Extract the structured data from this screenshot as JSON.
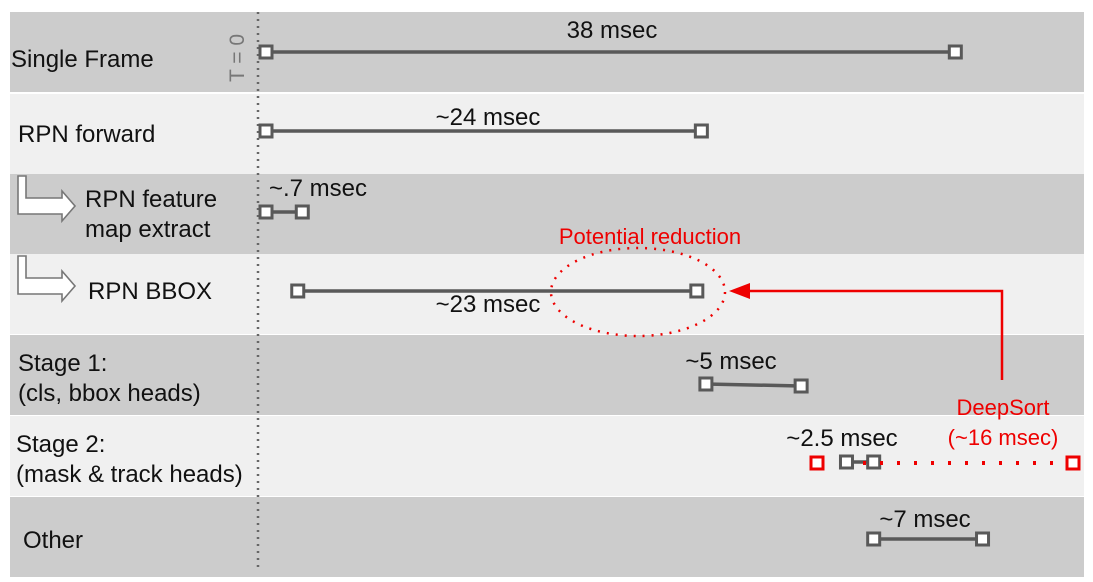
{
  "t0_label": "T = 0",
  "rows": [
    {
      "id": "single-frame",
      "label_lines": [
        "Single Frame"
      ],
      "shade": "dark",
      "arrow": false,
      "timing": "38 msec",
      "start": 0,
      "end": 38
    },
    {
      "id": "rpn-forward",
      "label_lines": [
        "RPN forward"
      ],
      "shade": "light",
      "arrow": false,
      "timing": "~24 msec",
      "start": 0,
      "end": 24
    },
    {
      "id": "rpn-feature-map-extract",
      "label_lines": [
        "RPN feature",
        "map extract"
      ],
      "shade": "dark",
      "arrow": true,
      "timing": "~.7 msec",
      "start": 0,
      "end": 2
    },
    {
      "id": "rpn-bbox",
      "label_lines": [
        "RPN BBOX"
      ],
      "shade": "light",
      "arrow": true,
      "timing": "~23 msec",
      "start": 1.75,
      "end": 23.75
    },
    {
      "id": "stage-1",
      "label_lines": [
        "Stage 1:",
        "(cls, bbox heads)"
      ],
      "shade": "dark",
      "arrow": false,
      "timing": "~5 msec",
      "start": 24.25,
      "end": 29.5
    },
    {
      "id": "stage-2",
      "label_lines": [
        "Stage 2:",
        "(mask & track heads)"
      ],
      "shade": "light",
      "arrow": false,
      "timing": "~2.5 msec",
      "start": 32,
      "end": 33.5
    },
    {
      "id": "other",
      "label_lines": [
        "Other"
      ],
      "shade": "dark",
      "arrow": false,
      "timing": "~7 msec",
      "start": 33.5,
      "end": 39.5
    }
  ],
  "annotations": {
    "potential_reduction": "Potential reduction",
    "deepsort_line1": "DeepSort",
    "deepsort_line2": "(~16 msec)"
  },
  "colors": {
    "row_dark": "#cccccc",
    "row_light": "#f0f0f0",
    "bar": "#595959",
    "highlight": "#ee0000"
  }
}
